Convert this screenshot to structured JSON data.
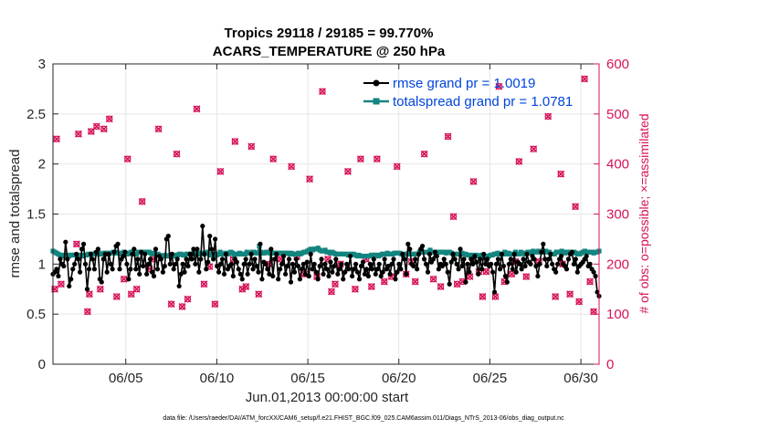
{
  "chart_data": {
    "type": "line",
    "title_line1": "Tropics 29118 / 29185 = 99.770%",
    "title_line2": "ACARS_TEMPERATURE @ 250 hPa",
    "xlabel": "Jun.01,2013 00:00:00 start",
    "ylabel_left": "rmse and totalspread",
    "ylabel_right": "# of obs: o=possible; ×=assimilated",
    "xlim": [
      1,
      31
    ],
    "ylim_left": [
      0,
      3
    ],
    "ylim_right": [
      0,
      600
    ],
    "x_ticks": [
      5,
      10,
      15,
      20,
      25,
      30
    ],
    "x_tick_labels": [
      "06/05",
      "06/10",
      "06/15",
      "06/20",
      "06/25",
      "06/30"
    ],
    "y_ticks_left": [
      "0",
      "0.5",
      "1",
      "1.5",
      "2",
      "2.5",
      "3"
    ],
    "y_ticks_right": [
      "0",
      "100",
      "200",
      "300",
      "400",
      "500",
      "600"
    ],
    "grid": true,
    "legend_position": "top-right",
    "colors": {
      "rmse": "#000000",
      "spread": "#13857f",
      "obs": "#d6135a",
      "legend_text": "#0044dd"
    },
    "series": [
      {
        "name": "rmse grand pr = 1.0019",
        "axis": "left",
        "marker": "filled-circle",
        "values": [
          0.9,
          0.92,
          0.95,
          0.88,
          1.05,
          1.0,
          0.98,
          1.22,
          1.05,
          0.78,
          0.85,
          0.95,
          1.0,
          1.1,
          1.05,
          0.92,
          1.15,
          1.2,
          1.0,
          0.75,
          0.95,
          1.1,
          1.05,
          0.95,
          1.12,
          1.15,
          0.85,
          0.82,
          1.05,
          1.1,
          0.92,
          1.1,
          1.0,
          0.95,
          1.12,
          1.18,
          1.2,
          0.95,
          1.05,
          1.08,
          1.12,
          1.0,
          0.85,
          0.95,
          1.1,
          1.15,
          0.95,
          1.05,
          0.9,
          1.12,
          0.98,
          1.1,
          0.9,
          1.0,
          1.05,
          0.92,
          0.88,
          1.15,
          0.95,
          1.08,
          1.05,
          0.92,
          0.98,
          1.25,
          1.28,
          1.0,
          1.1,
          0.95,
          1.0,
          1.05,
          0.78,
          0.9,
          1.0,
          0.92,
          1.05,
          0.98,
          1.1,
          1.05,
          1.15,
          1.0,
          1.15,
          0.92,
          1.05,
          1.38,
          1.1,
          0.95,
          1.02,
          1.28,
          1.15,
          1.05,
          1.25,
          0.98,
          0.92,
          1.0,
          1.05,
          0.9,
          1.1,
          0.95,
          0.98,
          1.0,
          0.88,
          1.05,
          1.02,
          0.95,
          0.9,
          0.85,
          1.0,
          1.05,
          0.9,
          1.0,
          1.1,
          0.95,
          1.05,
          0.98,
          0.92,
          1.2,
          0.85,
          1.02,
          1.0,
          0.95,
          0.9,
          1.15,
          0.88,
          1.05,
          1.1,
          0.85,
          0.95,
          1.0,
          1.08,
          0.9,
          0.98,
          1.05,
          0.82,
          1.0,
          0.92,
          1.05,
          0.98,
          0.85,
          0.95,
          1.0,
          0.9,
          1.02,
          0.88,
          1.1,
          0.95,
          1.0,
          0.92,
          0.85,
          0.98,
          1.05,
          0.9,
          1.0,
          0.95,
          0.88,
          1.02,
          0.92,
          0.98,
          1.05,
          0.9,
          0.95,
          1.0,
          0.85,
          0.92,
          1.0,
          0.95,
          1.08,
          0.88,
          0.95,
          1.0,
          0.92,
          0.85,
          0.98,
          1.02,
          0.9,
          0.95,
          0.88,
          1.0,
          0.95,
          1.05,
          0.9,
          0.95,
          1.0,
          0.88,
          0.92,
          1.05,
          0.95,
          0.98,
          0.9,
          1.0,
          1.05,
          0.85,
          0.92,
          1.0,
          0.95,
          1.1,
          1.05,
          0.9,
          1.2,
          1.15,
          1.0,
          0.98,
          1.05,
          0.95,
          1.1,
          1.15,
          1.18,
          1.05,
          1.0,
          0.92,
          1.1,
          1.02,
          1.05,
          1.12,
          1.08,
          0.95,
          1.0,
          0.98,
          1.05,
          1.0,
          0.92,
          0.8,
          1.02,
          1.1,
          1.05,
          1.0,
          0.95,
          1.15,
          0.98,
          1.05,
          0.82,
          1.0,
          0.92,
          1.05,
          1.0,
          1.08,
          1.02,
          0.9,
          1.05,
          0.95,
          1.1,
          1.0,
          1.05,
          0.98,
          1.0,
          0.92,
          0.72,
          1.0,
          1.05,
          0.95,
          1.1,
          0.98,
          0.88,
          0.82,
          1.0,
          1.05,
          0.95,
          1.1,
          0.92,
          1.02,
          1.0,
          0.95,
          1.05,
          0.98,
          1.1,
          1.02,
          1.0,
          1.08,
          1.05,
          0.98,
          0.88,
          1.0,
          1.12,
          1.2,
          1.05,
          0.98,
          1.05,
          1.1,
          1.0,
          0.95,
          0.92,
          1.0,
          1.05,
          1.08,
          1.0,
          0.98,
          0.95,
          1.05,
          1.1,
          1.12,
          1.0,
          1.05,
          0.92,
          0.98,
          1.0,
          1.02,
          1.05,
          1.08,
          0.98,
          1.0,
          0.95,
          0.92,
          0.88,
          0.72,
          0.68
        ]
      },
      {
        "name": "totalspread grand pr = 1.0781",
        "axis": "left",
        "marker": "filled-square",
        "values": [
          1.13,
          1.12,
          1.11,
          1.1,
          1.09,
          1.08,
          1.09,
          1.08,
          1.09,
          1.08,
          1.09,
          1.09,
          1.09,
          1.09,
          1.08,
          1.09,
          1.09,
          1.08,
          1.09,
          1.09,
          1.1,
          1.1,
          1.1,
          1.1,
          1.11,
          1.1,
          1.11,
          1.1,
          1.1,
          1.11,
          1.11,
          1.1,
          1.11,
          1.11,
          1.12,
          1.12,
          1.11,
          1.11,
          1.1,
          1.11,
          1.12,
          1.11,
          1.1,
          1.11,
          1.12,
          1.12,
          1.1,
          1.1,
          1.12,
          1.12,
          1.12,
          1.12,
          1.12,
          1.12,
          1.12,
          1.11,
          1.1,
          1.11,
          1.1,
          1.1,
          1.09,
          1.08,
          1.08,
          1.09,
          1.08,
          1.08,
          1.09,
          1.09,
          1.09,
          1.08,
          1.09,
          1.1,
          1.1,
          1.09,
          1.09,
          1.1,
          1.1,
          1.1,
          1.1,
          1.11,
          1.11,
          1.1,
          1.1,
          1.11,
          1.11,
          1.1,
          1.11,
          1.12,
          1.1,
          1.09,
          1.09,
          1.1,
          1.09,
          1.1,
          1.12,
          1.1,
          1.1,
          1.11,
          1.1,
          1.11,
          1.12,
          1.11,
          1.09,
          1.1,
          1.1,
          1.11,
          1.1,
          1.1,
          1.1,
          1.12,
          1.11,
          1.11,
          1.12,
          1.12,
          1.11,
          1.11,
          1.18,
          1.12,
          1.11,
          1.11,
          1.12,
          1.12,
          1.11,
          1.11,
          1.11,
          1.11,
          1.11,
          1.11,
          1.11,
          1.11,
          1.11,
          1.11,
          1.11,
          1.1,
          1.11,
          1.1,
          1.1,
          1.1,
          1.11,
          1.1,
          1.11,
          1.12,
          1.12,
          1.13,
          1.14,
          1.15,
          1.14,
          1.15,
          1.15,
          1.16,
          1.14,
          1.13,
          1.13,
          1.14,
          1.12,
          1.12,
          1.11,
          1.12,
          1.11,
          1.1,
          1.1,
          1.1,
          1.1,
          1.1,
          1.1,
          1.1,
          1.09,
          1.1,
          1.1,
          1.1,
          1.09,
          1.08,
          1.09,
          1.08,
          1.08,
          1.08,
          1.08,
          1.08,
          1.08,
          1.09,
          1.09,
          1.09,
          1.09,
          1.08,
          1.09,
          1.1,
          1.1,
          1.1,
          1.11,
          1.1,
          1.1,
          1.1,
          1.11,
          1.11,
          1.11,
          1.11,
          1.1,
          1.09,
          1.1,
          1.1,
          1.11,
          1.1,
          1.1,
          1.1,
          1.1,
          1.1,
          1.12,
          1.13,
          1.12,
          1.12,
          1.12,
          1.12,
          1.14,
          1.12,
          1.12,
          1.12,
          1.12,
          1.12,
          1.12,
          1.12,
          1.12,
          1.11,
          1.12,
          1.12,
          1.11,
          1.1,
          1.1,
          1.1,
          1.1,
          1.1,
          1.11,
          1.1,
          1.1,
          1.09,
          1.09,
          1.08,
          1.09,
          1.08,
          1.09,
          1.08,
          1.08,
          1.09,
          1.08,
          1.08,
          1.08,
          1.08,
          1.09,
          1.09,
          1.1,
          1.1,
          1.11,
          1.1,
          1.1,
          1.1,
          1.12,
          1.1,
          1.11,
          1.1,
          1.1,
          1.1,
          1.12,
          1.1,
          1.1,
          1.12,
          1.11,
          1.1,
          1.11,
          1.12,
          1.12,
          1.11,
          1.13,
          1.12,
          1.12,
          1.13,
          1.12,
          1.12,
          1.12,
          1.13,
          1.12,
          1.12,
          1.1,
          1.1,
          1.1,
          1.12,
          1.12,
          1.12,
          1.13,
          1.12,
          1.11,
          1.12,
          1.12,
          1.12,
          1.12,
          1.12,
          1.11,
          1.1,
          1.1,
          1.11,
          1.12,
          1.13,
          1.12,
          1.12,
          1.12,
          1.12,
          1.11,
          1.12,
          1.12,
          1.13
        ]
      }
    ],
    "obs_points": [
      [
        1.1,
        150
      ],
      [
        1.2,
        450
      ],
      [
        1.45,
        160
      ],
      [
        2.3,
        240
      ],
      [
        2.4,
        460
      ],
      [
        2.9,
        105
      ],
      [
        3.0,
        140
      ],
      [
        3.1,
        465
      ],
      [
        3.4,
        475
      ],
      [
        3.6,
        150
      ],
      [
        3.8,
        470
      ],
      [
        4.1,
        490
      ],
      [
        4.5,
        135
      ],
      [
        4.9,
        170
      ],
      [
        5.1,
        410
      ],
      [
        5.3,
        140
      ],
      [
        5.6,
        150
      ],
      [
        5.9,
        325
      ],
      [
        6.3,
        190
      ],
      [
        6.5,
        210
      ],
      [
        6.8,
        470
      ],
      [
        7.5,
        120
      ],
      [
        7.8,
        420
      ],
      [
        8.1,
        115
      ],
      [
        8.4,
        130
      ],
      [
        8.9,
        510
      ],
      [
        9.3,
        160
      ],
      [
        9.6,
        195
      ],
      [
        9.9,
        120
      ],
      [
        10.2,
        385
      ],
      [
        10.9,
        210
      ],
      [
        11.0,
        445
      ],
      [
        11.4,
        150
      ],
      [
        11.6,
        155
      ],
      [
        11.9,
        435
      ],
      [
        12.3,
        140
      ],
      [
        12.9,
        200
      ],
      [
        13.1,
        410
      ],
      [
        13.5,
        210
      ],
      [
        14.1,
        395
      ],
      [
        14.4,
        215
      ],
      [
        14.8,
        180
      ],
      [
        15.1,
        370
      ],
      [
        15.5,
        175
      ],
      [
        15.8,
        545
      ],
      [
        16.1,
        210
      ],
      [
        16.3,
        145
      ],
      [
        16.5,
        160
      ],
      [
        16.8,
        200
      ],
      [
        17.2,
        385
      ],
      [
        17.6,
        150
      ],
      [
        17.9,
        410
      ],
      [
        18.2,
        210
      ],
      [
        18.5,
        155
      ],
      [
        18.8,
        410
      ],
      [
        19.2,
        165
      ],
      [
        19.6,
        175
      ],
      [
        19.9,
        395
      ],
      [
        20.4,
        180
      ],
      [
        20.7,
        205
      ],
      [
        20.9,
        165
      ],
      [
        21.4,
        420
      ],
      [
        21.9,
        170
      ],
      [
        22.3,
        155
      ],
      [
        22.7,
        455
      ],
      [
        23.0,
        295
      ],
      [
        23.2,
        160
      ],
      [
        23.5,
        165
      ],
      [
        23.9,
        175
      ],
      [
        24.1,
        365
      ],
      [
        24.4,
        185
      ],
      [
        24.6,
        135
      ],
      [
        24.8,
        185
      ],
      [
        25.3,
        135
      ],
      [
        25.5,
        555
      ],
      [
        25.8,
        165
      ],
      [
        26.2,
        180
      ],
      [
        26.4,
        205
      ],
      [
        26.6,
        405
      ],
      [
        27.0,
        175
      ],
      [
        27.4,
        430
      ],
      [
        27.7,
        205
      ],
      [
        28.2,
        495
      ],
      [
        28.6,
        135
      ],
      [
        28.9,
        380
      ],
      [
        29.0,
        200
      ],
      [
        29.4,
        140
      ],
      [
        29.7,
        315
      ],
      [
        29.9,
        125
      ],
      [
        30.2,
        570
      ],
      [
        30.5,
        165
      ],
      [
        30.7,
        105
      ]
    ],
    "footer": "data file: /Users/raeder/DAI/ATM_forcXX/CAM6_setup/f.e21.FHIST_BGC.f09_025.CAM6assim.011/Diags_NTrS_2013-06/obs_diag_output.nc"
  }
}
